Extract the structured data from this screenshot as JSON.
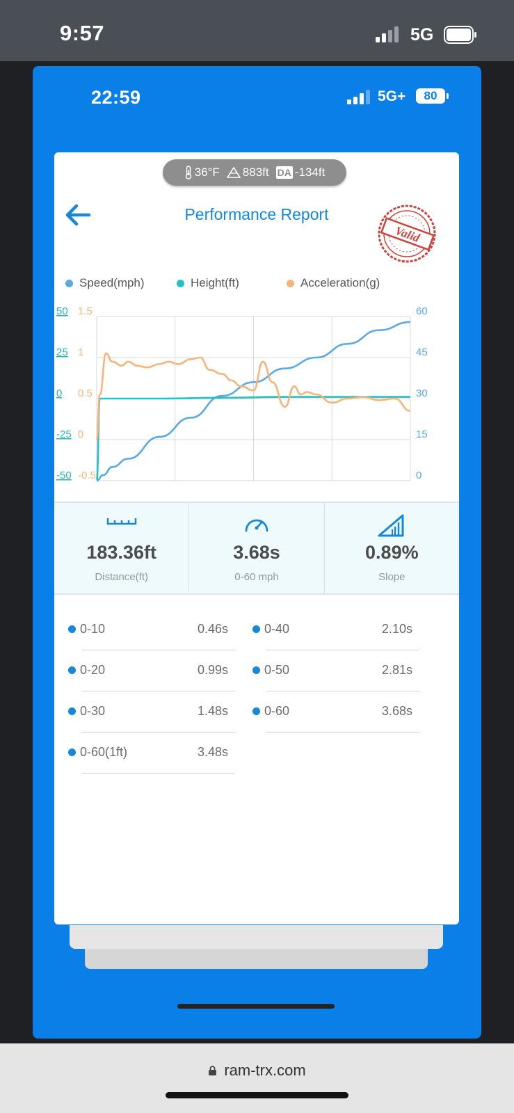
{
  "outer_status": {
    "time": "9:57",
    "network": "5G"
  },
  "inner_status": {
    "time": "22:59",
    "network": "5G+",
    "battery": "80"
  },
  "env": {
    "temperature": "36°F",
    "altitude": "883ft",
    "da_label": "DA",
    "density_altitude": "-134ft"
  },
  "header": {
    "title": "Performance Report",
    "stamp": "Valid"
  },
  "chart_data": {
    "type": "line",
    "series": [
      {
        "name": "Speed(mph)",
        "color": "#5aa9e0",
        "axis": "right",
        "x": [
          0,
          0.02,
          0.05,
          0.1,
          0.2,
          0.3,
          0.4,
          0.5,
          0.6,
          0.7,
          0.8,
          0.9,
          1.0
        ],
        "values": [
          0,
          2,
          5,
          8,
          16,
          23,
          31,
          36,
          41,
          45,
          50,
          55,
          58
        ]
      },
      {
        "name": "Height(ft)",
        "color": "#25c0c0",
        "axis": "left-outer",
        "x": [
          0,
          0.01,
          0.2,
          0.4,
          0.6,
          0.8,
          1.0
        ],
        "values": [
          -50,
          0,
          0,
          0.5,
          1,
          1,
          1
        ]
      },
      {
        "name": "Acceleration(g)",
        "color": "#f3b57c",
        "axis": "left-inner",
        "x": [
          0,
          0.01,
          0.03,
          0.05,
          0.08,
          0.1,
          0.13,
          0.16,
          0.2,
          0.23,
          0.26,
          0.3,
          0.33,
          0.36,
          0.4,
          0.43,
          0.46,
          0.5,
          0.53,
          0.56,
          0.6,
          0.63,
          0.65,
          0.67,
          0.7,
          0.75,
          0.8,
          0.85,
          0.9,
          0.95,
          1.0
        ],
        "values": [
          0,
          0.55,
          1.05,
          0.95,
          0.9,
          0.95,
          0.9,
          0.88,
          0.92,
          0.95,
          0.92,
          0.98,
          1.0,
          0.85,
          0.8,
          0.72,
          0.65,
          0.6,
          0.95,
          0.7,
          0.4,
          0.65,
          0.55,
          0.58,
          0.55,
          0.45,
          0.5,
          0.52,
          0.48,
          0.5,
          0.35
        ]
      }
    ],
    "y_left_outer": {
      "ticks": [
        "50",
        "25",
        "0",
        "-25",
        "-50"
      ],
      "range": [
        -50,
        50
      ]
    },
    "y_left_inner": {
      "ticks": [
        "1.5",
        "1",
        "0.5",
        "0",
        "-0.5"
      ],
      "range": [
        -0.5,
        1.5
      ]
    },
    "y_right": {
      "ticks": [
        "60",
        "45",
        "30",
        "15",
        "0"
      ],
      "range": [
        0,
        60
      ]
    },
    "grid": true,
    "legend": "top"
  },
  "stats": [
    {
      "value": "183.36ft",
      "label": "Distance(ft)",
      "icon": "ruler-icon"
    },
    {
      "value": "3.68s",
      "label": "0-60 mph",
      "icon": "speedometer-icon"
    },
    {
      "value": "0.89%",
      "label": "Slope",
      "icon": "slope-icon"
    }
  ],
  "splits": [
    {
      "name": "0-10",
      "time": "0.46s"
    },
    {
      "name": "0-40",
      "time": "2.10s"
    },
    {
      "name": "0-20",
      "time": "0.99s"
    },
    {
      "name": "0-50",
      "time": "2.81s"
    },
    {
      "name": "0-30",
      "time": "1.48s"
    },
    {
      "name": "0-60",
      "time": "3.68s"
    },
    {
      "name": "0-60(1ft)",
      "time": "3.48s"
    }
  ],
  "browser": {
    "url": "ram-trx.com"
  }
}
